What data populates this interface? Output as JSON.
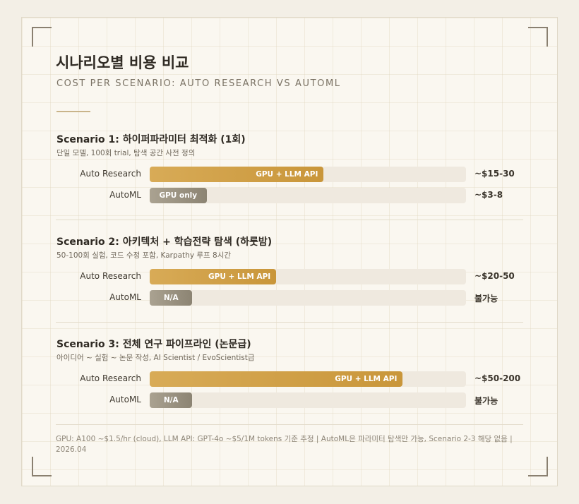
{
  "title": "시나리오별 비용 비교",
  "subtitle": "COST PER SCENARIO: AUTO RESEARCH VS AUTOML",
  "colors": {
    "auto_research": "#d1a24a",
    "automl": "#9a9281",
    "track": "#efe9df",
    "background": "#faf7f0"
  },
  "chart_data": {
    "type": "bar",
    "orientation": "horizontal",
    "series_labels": [
      "Auto Research",
      "AutoML"
    ],
    "scenarios": [
      {
        "title": "Scenario 1: 하이퍼파라미터 최적화 (1회)",
        "description": "단일 모델, 100회 trial, 탐색 공간 사전 정의",
        "rows": [
          {
            "name": "Auto Research",
            "bar_text": "GPU + LLM API",
            "value_text": "~$15-30",
            "fill": 0.55
          },
          {
            "name": "AutoML",
            "bar_text": "GPU only",
            "value_text": "~$3-8",
            "fill": 0.18
          }
        ]
      },
      {
        "title": "Scenario 2: 아키텍처 + 학습전략 탐색 (하룻밤)",
        "description": "50-100회 실험, 코드 수정 포함, Karpathy 루프 8시간",
        "rows": [
          {
            "name": "Auto Research",
            "bar_text": "GPU + LLM API",
            "value_text": "~$20-50",
            "fill": 0.4
          },
          {
            "name": "AutoML",
            "bar_text": "N/A",
            "value_text": "불가능",
            "fill": 0.135
          }
        ]
      },
      {
        "title": "Scenario 3: 전체 연구 파이프라인 (논문급)",
        "description": "아이디어 ~ 실험 ~ 논문 작성, AI Scientist / EvoScientist급",
        "rows": [
          {
            "name": "Auto Research",
            "bar_text": "GPU + LLM API",
            "value_text": "~$50-200",
            "fill": 0.8
          },
          {
            "name": "AutoML",
            "bar_text": "N/A",
            "value_text": "불가능",
            "fill": 0.135
          }
        ]
      }
    ]
  },
  "footnote": "GPU: A100 ~$1.5/hr (cloud), LLM API: GPT-4o ~$5/1M tokens 기준 추정 | AutoML은 파라미터 탐색만 가능, Scenario 2-3 해당 없음 | 2026.04"
}
